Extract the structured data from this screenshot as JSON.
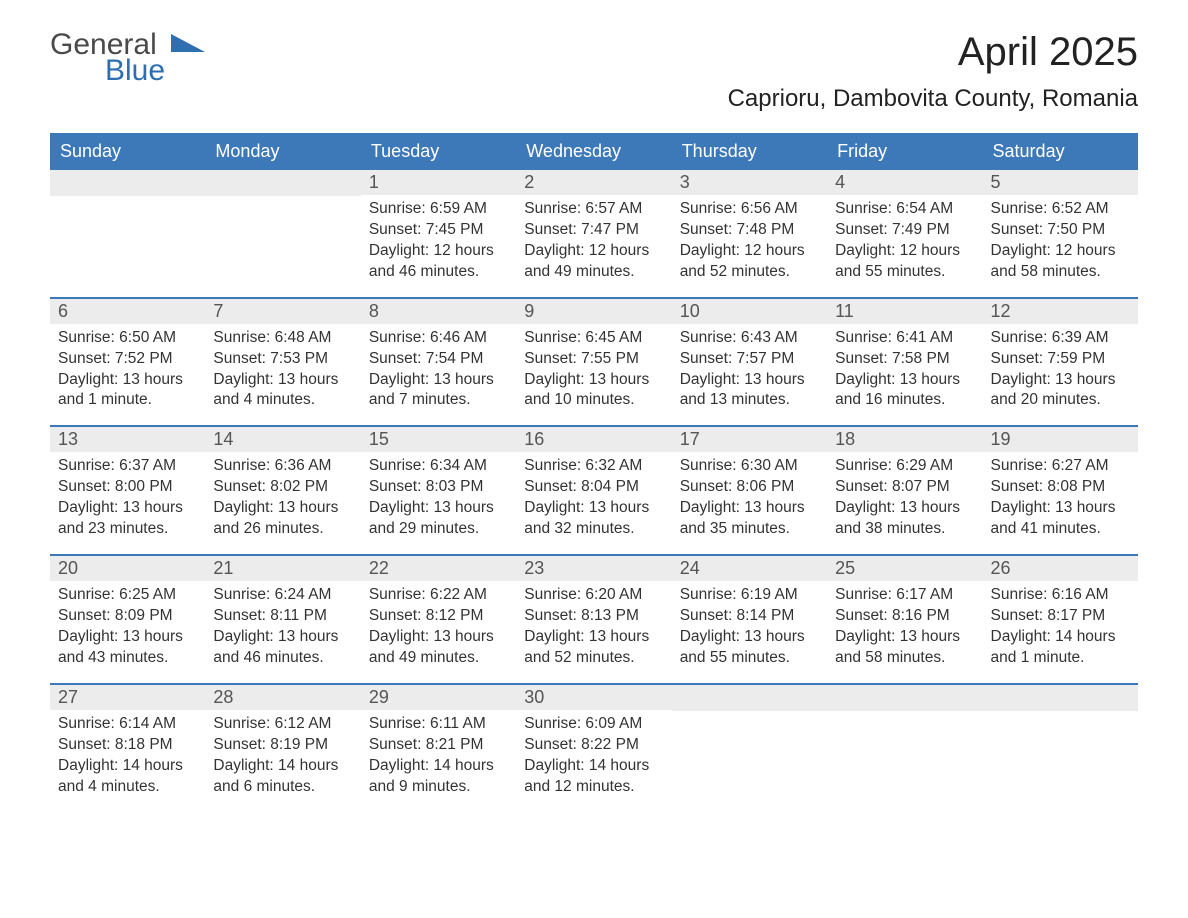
{
  "logo": {
    "line1": "General",
    "line2": "Blue",
    "accent_color": "#2f6fb0",
    "text_color": "#4a4a4a"
  },
  "title": "April 2025",
  "location": "Caprioru, Dambovita County, Romania",
  "colors": {
    "header_bg": "#3d78b8",
    "header_text": "#ffffff",
    "daynum_bg": "#ececec",
    "week_divider": "#3d78b8",
    "body_text": "#333333",
    "page_bg": "#ffffff"
  },
  "fonts": {
    "title_size_pt": 30,
    "location_size_pt": 18,
    "dow_size_pt": 14,
    "body_size_pt": 12
  },
  "dow": [
    "Sunday",
    "Monday",
    "Tuesday",
    "Wednesday",
    "Thursday",
    "Friday",
    "Saturday"
  ],
  "weeks": [
    [
      {
        "n": "",
        "sunrise": "",
        "sunset": "",
        "daylight": ""
      },
      {
        "n": "",
        "sunrise": "",
        "sunset": "",
        "daylight": ""
      },
      {
        "n": "1",
        "sunrise": "6:59 AM",
        "sunset": "7:45 PM",
        "daylight": "12 hours and 46 minutes."
      },
      {
        "n": "2",
        "sunrise": "6:57 AM",
        "sunset": "7:47 PM",
        "daylight": "12 hours and 49 minutes."
      },
      {
        "n": "3",
        "sunrise": "6:56 AM",
        "sunset": "7:48 PM",
        "daylight": "12 hours and 52 minutes."
      },
      {
        "n": "4",
        "sunrise": "6:54 AM",
        "sunset": "7:49 PM",
        "daylight": "12 hours and 55 minutes."
      },
      {
        "n": "5",
        "sunrise": "6:52 AM",
        "sunset": "7:50 PM",
        "daylight": "12 hours and 58 minutes."
      }
    ],
    [
      {
        "n": "6",
        "sunrise": "6:50 AM",
        "sunset": "7:52 PM",
        "daylight": "13 hours and 1 minute."
      },
      {
        "n": "7",
        "sunrise": "6:48 AM",
        "sunset": "7:53 PM",
        "daylight": "13 hours and 4 minutes."
      },
      {
        "n": "8",
        "sunrise": "6:46 AM",
        "sunset": "7:54 PM",
        "daylight": "13 hours and 7 minutes."
      },
      {
        "n": "9",
        "sunrise": "6:45 AM",
        "sunset": "7:55 PM",
        "daylight": "13 hours and 10 minutes."
      },
      {
        "n": "10",
        "sunrise": "6:43 AM",
        "sunset": "7:57 PM",
        "daylight": "13 hours and 13 minutes."
      },
      {
        "n": "11",
        "sunrise": "6:41 AM",
        "sunset": "7:58 PM",
        "daylight": "13 hours and 16 minutes."
      },
      {
        "n": "12",
        "sunrise": "6:39 AM",
        "sunset": "7:59 PM",
        "daylight": "13 hours and 20 minutes."
      }
    ],
    [
      {
        "n": "13",
        "sunrise": "6:37 AM",
        "sunset": "8:00 PM",
        "daylight": "13 hours and 23 minutes."
      },
      {
        "n": "14",
        "sunrise": "6:36 AM",
        "sunset": "8:02 PM",
        "daylight": "13 hours and 26 minutes."
      },
      {
        "n": "15",
        "sunrise": "6:34 AM",
        "sunset": "8:03 PM",
        "daylight": "13 hours and 29 minutes."
      },
      {
        "n": "16",
        "sunrise": "6:32 AM",
        "sunset": "8:04 PM",
        "daylight": "13 hours and 32 minutes."
      },
      {
        "n": "17",
        "sunrise": "6:30 AM",
        "sunset": "8:06 PM",
        "daylight": "13 hours and 35 minutes."
      },
      {
        "n": "18",
        "sunrise": "6:29 AM",
        "sunset": "8:07 PM",
        "daylight": "13 hours and 38 minutes."
      },
      {
        "n": "19",
        "sunrise": "6:27 AM",
        "sunset": "8:08 PM",
        "daylight": "13 hours and 41 minutes."
      }
    ],
    [
      {
        "n": "20",
        "sunrise": "6:25 AM",
        "sunset": "8:09 PM",
        "daylight": "13 hours and 43 minutes."
      },
      {
        "n": "21",
        "sunrise": "6:24 AM",
        "sunset": "8:11 PM",
        "daylight": "13 hours and 46 minutes."
      },
      {
        "n": "22",
        "sunrise": "6:22 AM",
        "sunset": "8:12 PM",
        "daylight": "13 hours and 49 minutes."
      },
      {
        "n": "23",
        "sunrise": "6:20 AM",
        "sunset": "8:13 PM",
        "daylight": "13 hours and 52 minutes."
      },
      {
        "n": "24",
        "sunrise": "6:19 AM",
        "sunset": "8:14 PM",
        "daylight": "13 hours and 55 minutes."
      },
      {
        "n": "25",
        "sunrise": "6:17 AM",
        "sunset": "8:16 PM",
        "daylight": "13 hours and 58 minutes."
      },
      {
        "n": "26",
        "sunrise": "6:16 AM",
        "sunset": "8:17 PM",
        "daylight": "14 hours and 1 minute."
      }
    ],
    [
      {
        "n": "27",
        "sunrise": "6:14 AM",
        "sunset": "8:18 PM",
        "daylight": "14 hours and 4 minutes."
      },
      {
        "n": "28",
        "sunrise": "6:12 AM",
        "sunset": "8:19 PM",
        "daylight": "14 hours and 6 minutes."
      },
      {
        "n": "29",
        "sunrise": "6:11 AM",
        "sunset": "8:21 PM",
        "daylight": "14 hours and 9 minutes."
      },
      {
        "n": "30",
        "sunrise": "6:09 AM",
        "sunset": "8:22 PM",
        "daylight": "14 hours and 12 minutes."
      },
      {
        "n": "",
        "sunrise": "",
        "sunset": "",
        "daylight": ""
      },
      {
        "n": "",
        "sunrise": "",
        "sunset": "",
        "daylight": ""
      },
      {
        "n": "",
        "sunrise": "",
        "sunset": "",
        "daylight": ""
      }
    ]
  ],
  "labels": {
    "sunrise": "Sunrise: ",
    "sunset": "Sunset: ",
    "daylight": "Daylight: "
  }
}
